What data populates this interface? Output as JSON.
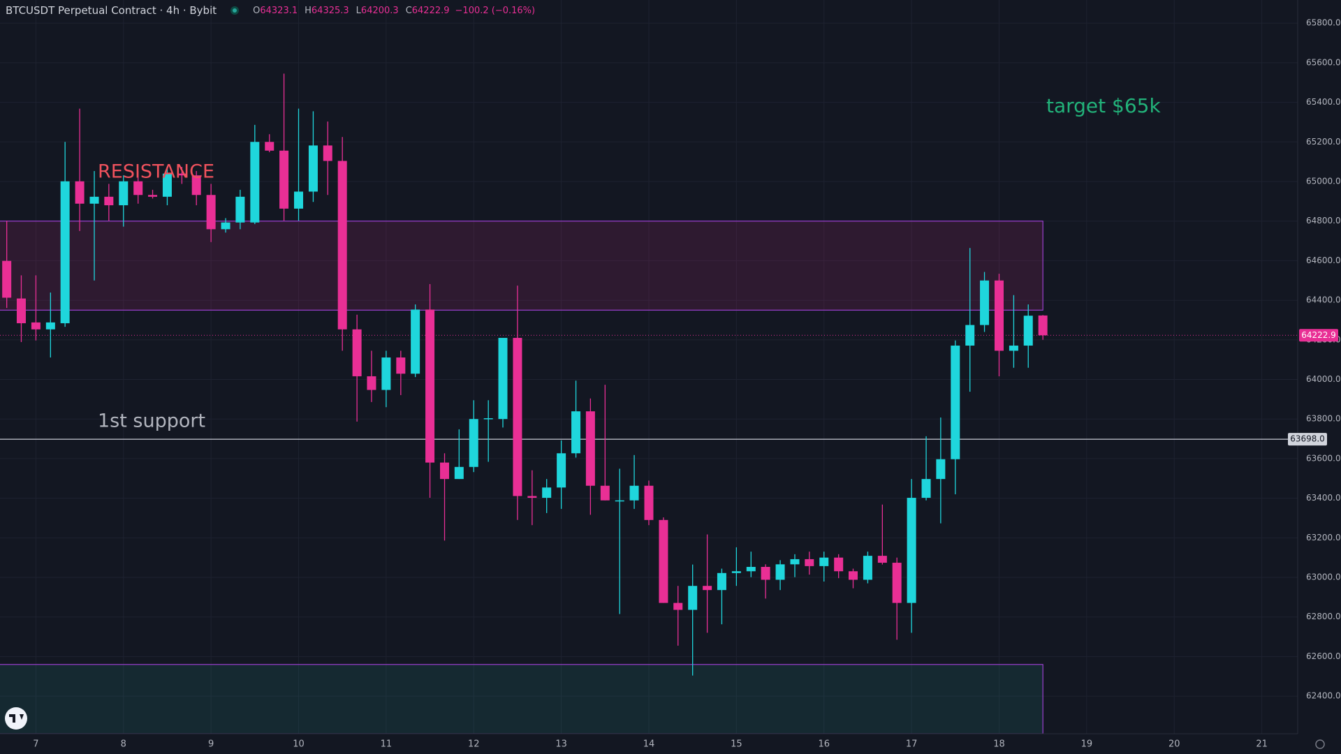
{
  "chart_data": {
    "type": "candlestick",
    "title": "BTCUSDT Perpetual Contract · 4h · Bybit",
    "ohlc_labels": [
      "O",
      "H",
      "L",
      "C"
    ],
    "change_label": "−100.2 (−0.16%)",
    "x": [
      6.667,
      6.833,
      7,
      7.167,
      7.333,
      7.5,
      7.667,
      7.833,
      8,
      8.167,
      8.333,
      8.5,
      8.667,
      8.833,
      9,
      9.167,
      9.333,
      9.5,
      9.667,
      9.833,
      10,
      10.167,
      10.333,
      10.5,
      10.667,
      10.833,
      11,
      11.167,
      11.333,
      11.5,
      11.667,
      11.833,
      12,
      12.167,
      12.333,
      12.5,
      12.667,
      12.833,
      13,
      13.167,
      13.333,
      13.5,
      13.667,
      13.833,
      14,
      14.167,
      14.333,
      14.5,
      14.667,
      14.833,
      15,
      15.167,
      15.333,
      15.5,
      15.667,
      15.833,
      16,
      16.167,
      16.333,
      16.5,
      16.667,
      16.833,
      17,
      17.167,
      17.333,
      17.5,
      17.667,
      17.833,
      18,
      18.167,
      18.333,
      18.5
    ],
    "open": [
      64599,
      64409,
      64288,
      64253,
      64284,
      65001,
      64888,
      64923,
      64880,
      65001,
      64932,
      64923,
      65040,
      65031,
      64932,
      64759,
      64793,
      64793,
      65200,
      65156,
      64863,
      64949,
      65182,
      65104,
      64253,
      64016,
      63947,
      64111,
      64029,
      64353,
      63580,
      63497,
      63558,
      63800,
      63800,
      64210,
      63411,
      63402,
      63454,
      63627,
      63839,
      63463,
      63385,
      63389,
      63463,
      63290,
      62871,
      62836,
      62957,
      62936,
      63022,
      63031,
      63053,
      62988,
      63066,
      63092,
      63057,
      63100,
      63031,
      62988,
      63109,
      63074,
      62871,
      63402,
      63497,
      63597,
      64171,
      64275,
      64500,
      64145,
      64171,
      64323.1
    ],
    "high": [
      64802,
      64526,
      64526,
      64439,
      65200,
      65368,
      65053,
      64988,
      65031,
      65053,
      64958,
      65074,
      65074,
      65053,
      64988,
      64815,
      64958,
      65286,
      65239,
      65545,
      65368,
      65355,
      65303,
      65225,
      64327,
      64145,
      64145,
      64145,
      64379,
      64482,
      63627,
      63748,
      63895,
      63895,
      64210,
      64474,
      63541,
      63497,
      63692,
      63994,
      63904,
      63973,
      63549,
      63618,
      63489,
      63303,
      62957,
      63065,
      63217,
      63044,
      63152,
      63130,
      63066,
      63087,
      63117,
      63130,
      63130,
      63117,
      63044,
      63130,
      63368,
      63100,
      63497,
      63713,
      63808,
      64197,
      64664,
      64543,
      64534,
      64426,
      64379,
      64325.3
    ],
    "low": [
      64361,
      64189,
      64197,
      64111,
      64266,
      64750,
      64500,
      64802,
      64772,
      64888,
      64914,
      64880,
      64988,
      64880,
      64694,
      64742,
      64759,
      64785,
      65148,
      64802,
      64802,
      64897,
      64932,
      64145,
      63787,
      63886,
      63860,
      63921,
      64012,
      63402,
      63186,
      63497,
      63532,
      63584,
      63757,
      63290,
      63264,
      63325,
      63346,
      63605,
      63316,
      63389,
      62815,
      63346,
      63264,
      62871,
      62655,
      62504,
      62720,
      62763,
      62957,
      63001,
      62893,
      62936,
      63001,
      63014,
      62979,
      62996,
      62945,
      62970,
      63065,
      62685,
      62720,
      63389,
      63273,
      63420,
      63938,
      64240,
      64016,
      64059,
      64059,
      64200.3
    ],
    "close": [
      64413,
      64284,
      64253,
      64288,
      65001,
      64888,
      64923,
      64880,
      65001,
      64932,
      64923,
      65040,
      65031,
      64932,
      64759,
      64793,
      64923,
      65200,
      65156,
      64863,
      64949,
      65182,
      65104,
      64253,
      64016,
      63947,
      64111,
      64029,
      64353,
      63580,
      63497,
      63558,
      63800,
      63804,
      64210,
      63411,
      63402,
      63454,
      63627,
      63839,
      63463,
      63389,
      63389,
      63463,
      63290,
      62871,
      62836,
      62957,
      62936,
      63022,
      63031,
      63053,
      62988,
      63066,
      63092,
      63057,
      63100,
      63031,
      62988,
      63109,
      63074,
      62871,
      63402,
      63497,
      63597,
      64171,
      64275,
      64500,
      64145,
      64171,
      64322,
      64222.9
    ],
    "up_color": "#1fd6dc",
    "down_color": "#e92f95",
    "xlim": [
      6.59,
      21.41
    ],
    "xticks": [
      7,
      8,
      9,
      10,
      11,
      12,
      13,
      14,
      15,
      16,
      17,
      18,
      19,
      20,
      21
    ],
    "ylim": [
      62210,
      65917
    ],
    "yticks": [
      {
        "value": 62400,
        "label": "62400.0"
      },
      {
        "value": 62600,
        "label": "62600.0"
      },
      {
        "value": 62800,
        "label": "62800.0"
      },
      {
        "value": 63000,
        "label": "63000.0"
      },
      {
        "value": 63200,
        "label": "63200.0"
      },
      {
        "value": 63400,
        "label": "63400.0"
      },
      {
        "value": 63600,
        "label": "63600.0"
      },
      {
        "value": 63800,
        "label": "63800.0"
      },
      {
        "value": 64000,
        "label": "64000.0"
      },
      {
        "value": 64200,
        "label": "64200.0"
      },
      {
        "value": 64400,
        "label": "64400.0"
      },
      {
        "value": 64600,
        "label": "64600.0"
      },
      {
        "value": 64800,
        "label": "64800.0"
      },
      {
        "value": 65000,
        "label": "65000.0"
      },
      {
        "value": 65200,
        "label": "65200.0"
      },
      {
        "value": 65400,
        "label": "65400.0"
      },
      {
        "value": 65600,
        "label": "65600.0"
      },
      {
        "value": 65800,
        "label": "65800.0"
      }
    ],
    "grid": true,
    "hline": {
      "value": 63698,
      "label": "63698.0"
    },
    "zones": [
      {
        "top": 64800,
        "bottom": 64350,
        "x_end": 18.5,
        "color": "#e92f95"
      },
      {
        "top": 62560,
        "bottom": 62210,
        "x_end": 18.5,
        "color": "#26a69a"
      }
    ],
    "annotations": [
      {
        "text": "RESISTANCE",
        "color": "#f0525d"
      },
      {
        "text": "1st support",
        "color": "#b2b5be"
      },
      {
        "text": "target $65k",
        "color": "#22b37a"
      }
    ]
  }
}
